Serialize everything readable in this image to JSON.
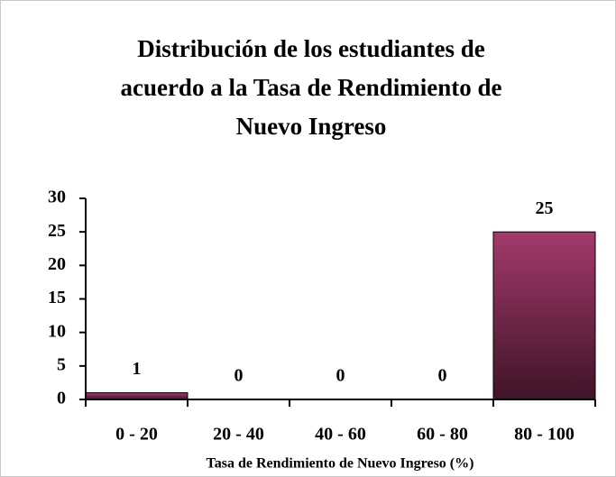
{
  "chart_data": {
    "type": "bar",
    "title": [
      "Distribución de los estudiantes de",
      "acuerdo a la Tasa de Rendimiento de",
      "Nuevo Ingreso"
    ],
    "x_label": "Tasa de Rendimiento de Nuevo Ingreso (%)",
    "categories": [
      "0 - 20",
      "20 - 40",
      "40 - 60",
      "60 - 80",
      "80 - 100"
    ],
    "values": [
      1,
      0,
      0,
      0,
      25
    ],
    "color": "#8a2c5a",
    "ylim": [
      0,
      30
    ],
    "yticks": [
      0,
      5,
      10,
      15,
      20,
      25,
      30
    ],
    "grid": false,
    "data_labels": true
  }
}
